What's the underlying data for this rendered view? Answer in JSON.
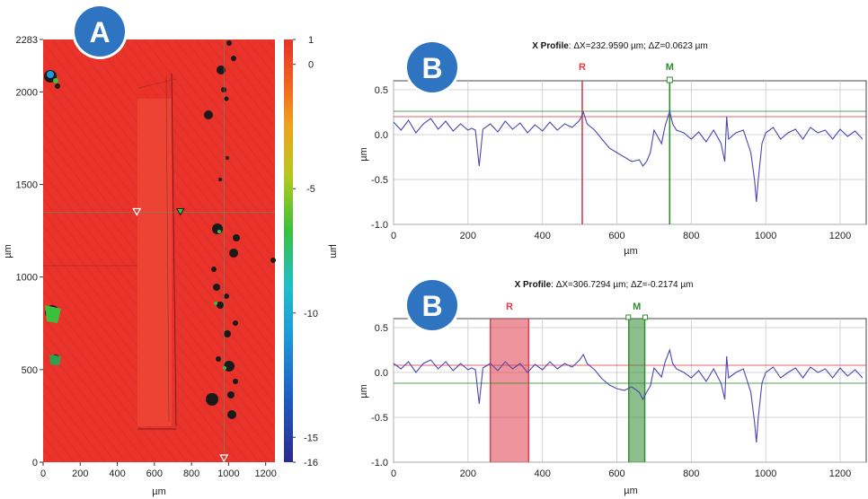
{
  "panels": {
    "a_label": "A",
    "b1_label": "B",
    "b2_label": "B"
  },
  "colors": {
    "map_red": "#e8322a",
    "badge_blue": "#2f74c0",
    "profile_line": "#4848b0",
    "reference_red": "#e03c4c",
    "measure_green": "#2e8a2e"
  },
  "chart_data": [
    {
      "type": "heatmap",
      "title": "",
      "xlabel": "µm",
      "ylabel": "µm",
      "xlim": [
        0,
        1250
      ],
      "ylim": [
        0,
        2283
      ],
      "x_ticks": [
        "0",
        "200",
        "400",
        "600",
        "800",
        "1000",
        "1200"
      ],
      "y_ticks": [
        "0",
        "500",
        "1000",
        "1500",
        "2000",
        "2283"
      ],
      "colorbar": {
        "label": "µm",
        "range": [
          -16,
          1
        ],
        "ticks": [
          "1",
          "0",
          "-5",
          "-10",
          "-15",
          "-16"
        ],
        "colors": [
          "#2a2a8c",
          "#1e90d0",
          "#1fb8c8",
          "#3cc03c",
          "#d8c020",
          "#f07020",
          "#e8322a"
        ]
      },
      "crosshair": {
        "x": 975,
        "y": 1350
      }
    },
    {
      "type": "line",
      "title": "X Profile",
      "delta_text": ": ΔX=232.9590 µm; ΔZ=0.0623 µm",
      "xlabel": "µm",
      "ylabel": "µm",
      "xlim": [
        0,
        1270
      ],
      "ylim": [
        -1.0,
        0.6
      ],
      "x_ticks": [
        0,
        200,
        400,
        600,
        800,
        1000,
        1200
      ],
      "y_ticks": [
        "0.5",
        "0.0",
        "-0.5",
        "-1.0"
      ],
      "grid": true,
      "markers": [
        {
          "label": "R",
          "x": 507,
          "level": 0.2
        },
        {
          "label": "M",
          "x": 742,
          "level": 0.26
        }
      ],
      "series": [
        {
          "x": [
            0,
            20,
            40,
            60,
            80,
            100,
            120,
            140,
            160,
            180,
            200,
            210,
            220,
            230,
            240,
            260,
            280,
            300,
            320,
            340,
            360,
            380,
            400,
            420,
            440,
            460,
            480,
            500,
            510,
            520,
            540,
            560,
            580,
            600,
            620,
            640,
            660,
            670,
            680,
            690,
            700,
            720,
            730,
            742,
            750,
            760,
            780,
            800,
            820,
            840,
            860,
            880,
            890,
            895,
            900,
            920,
            940,
            960,
            970,
            975,
            980,
            990,
            1000,
            1020,
            1040,
            1060,
            1080,
            1100,
            1120,
            1140,
            1160,
            1180,
            1200,
            1220,
            1240,
            1260
          ],
          "y": [
            0.14,
            0.05,
            0.16,
            0.02,
            0.12,
            0.18,
            0.06,
            0.15,
            0.04,
            0.12,
            0.05,
            0.07,
            0.05,
            -0.35,
            0.06,
            0.12,
            0.03,
            0.15,
            0.06,
            0.13,
            0.02,
            0.11,
            0.04,
            0.14,
            0.05,
            0.12,
            0.08,
            0.16,
            0.25,
            0.12,
            0.05,
            -0.05,
            -0.15,
            -0.2,
            -0.25,
            -0.3,
            -0.28,
            -0.35,
            -0.3,
            -0.2,
            0.05,
            -0.1,
            0.1,
            0.26,
            0.12,
            0.05,
            0.02,
            -0.05,
            0.03,
            -0.08,
            0.05,
            -0.1,
            -0.3,
            0.2,
            -0.05,
            0.02,
            0.05,
            -0.2,
            -0.5,
            -0.75,
            -0.5,
            -0.1,
            0.02,
            0.08,
            -0.05,
            0.02,
            0.06,
            -0.05,
            0.08,
            0.02,
            0.05,
            -0.05,
            0.06,
            -0.02,
            0.04,
            -0.05
          ]
        }
      ]
    },
    {
      "type": "line",
      "title": "X Profile",
      "delta_text": ": ΔX=306.7294 µm; ΔZ=-0.2174 µm",
      "xlabel": "µm",
      "ylabel": "µm",
      "xlim": [
        0,
        1270
      ],
      "ylim": [
        -1.0,
        0.6
      ],
      "x_ticks": [
        0,
        200,
        400,
        600,
        800,
        1000,
        1200
      ],
      "y_ticks": [
        "0.5",
        "0.0",
        "-0.5",
        "-1.0"
      ],
      "grid": true,
      "markers": [
        {
          "label": "R",
          "x": [
            260,
            363
          ],
          "level": 0.08
        },
        {
          "label": "M",
          "x": [
            632,
            675
          ],
          "level": -0.12
        }
      ],
      "series": [
        {
          "x": [
            0,
            20,
            40,
            60,
            80,
            100,
            120,
            140,
            160,
            180,
            200,
            210,
            220,
            230,
            240,
            260,
            280,
            300,
            320,
            340,
            360,
            380,
            400,
            420,
            440,
            460,
            480,
            500,
            510,
            520,
            540,
            560,
            580,
            600,
            620,
            640,
            660,
            670,
            680,
            690,
            700,
            720,
            730,
            742,
            750,
            760,
            780,
            800,
            820,
            840,
            860,
            880,
            890,
            895,
            900,
            920,
            940,
            960,
            970,
            975,
            980,
            990,
            1000,
            1020,
            1040,
            1060,
            1080,
            1100,
            1120,
            1140,
            1160,
            1180,
            1200,
            1220,
            1240,
            1260
          ],
          "y": [
            0.1,
            0.04,
            0.12,
            0.0,
            0.1,
            0.14,
            0.04,
            0.12,
            0.02,
            0.1,
            0.03,
            0.05,
            0.03,
            -0.35,
            0.05,
            0.1,
            0.02,
            0.12,
            0.04,
            0.1,
            0.0,
            0.09,
            0.03,
            0.12,
            0.04,
            0.1,
            0.06,
            0.14,
            0.2,
            0.1,
            0.03,
            -0.07,
            -0.14,
            -0.18,
            -0.2,
            -0.16,
            -0.22,
            -0.3,
            -0.22,
            -0.15,
            0.05,
            -0.05,
            0.12,
            0.25,
            0.1,
            0.04,
            0.0,
            -0.06,
            0.02,
            -0.1,
            0.04,
            -0.12,
            -0.3,
            0.18,
            -0.06,
            0.0,
            0.04,
            -0.22,
            -0.55,
            -0.78,
            -0.5,
            -0.12,
            0.0,
            0.06,
            -0.06,
            0.0,
            0.05,
            -0.06,
            0.06,
            0.0,
            0.04,
            -0.06,
            0.05,
            -0.04,
            0.03,
            -0.06
          ]
        }
      ]
    }
  ]
}
